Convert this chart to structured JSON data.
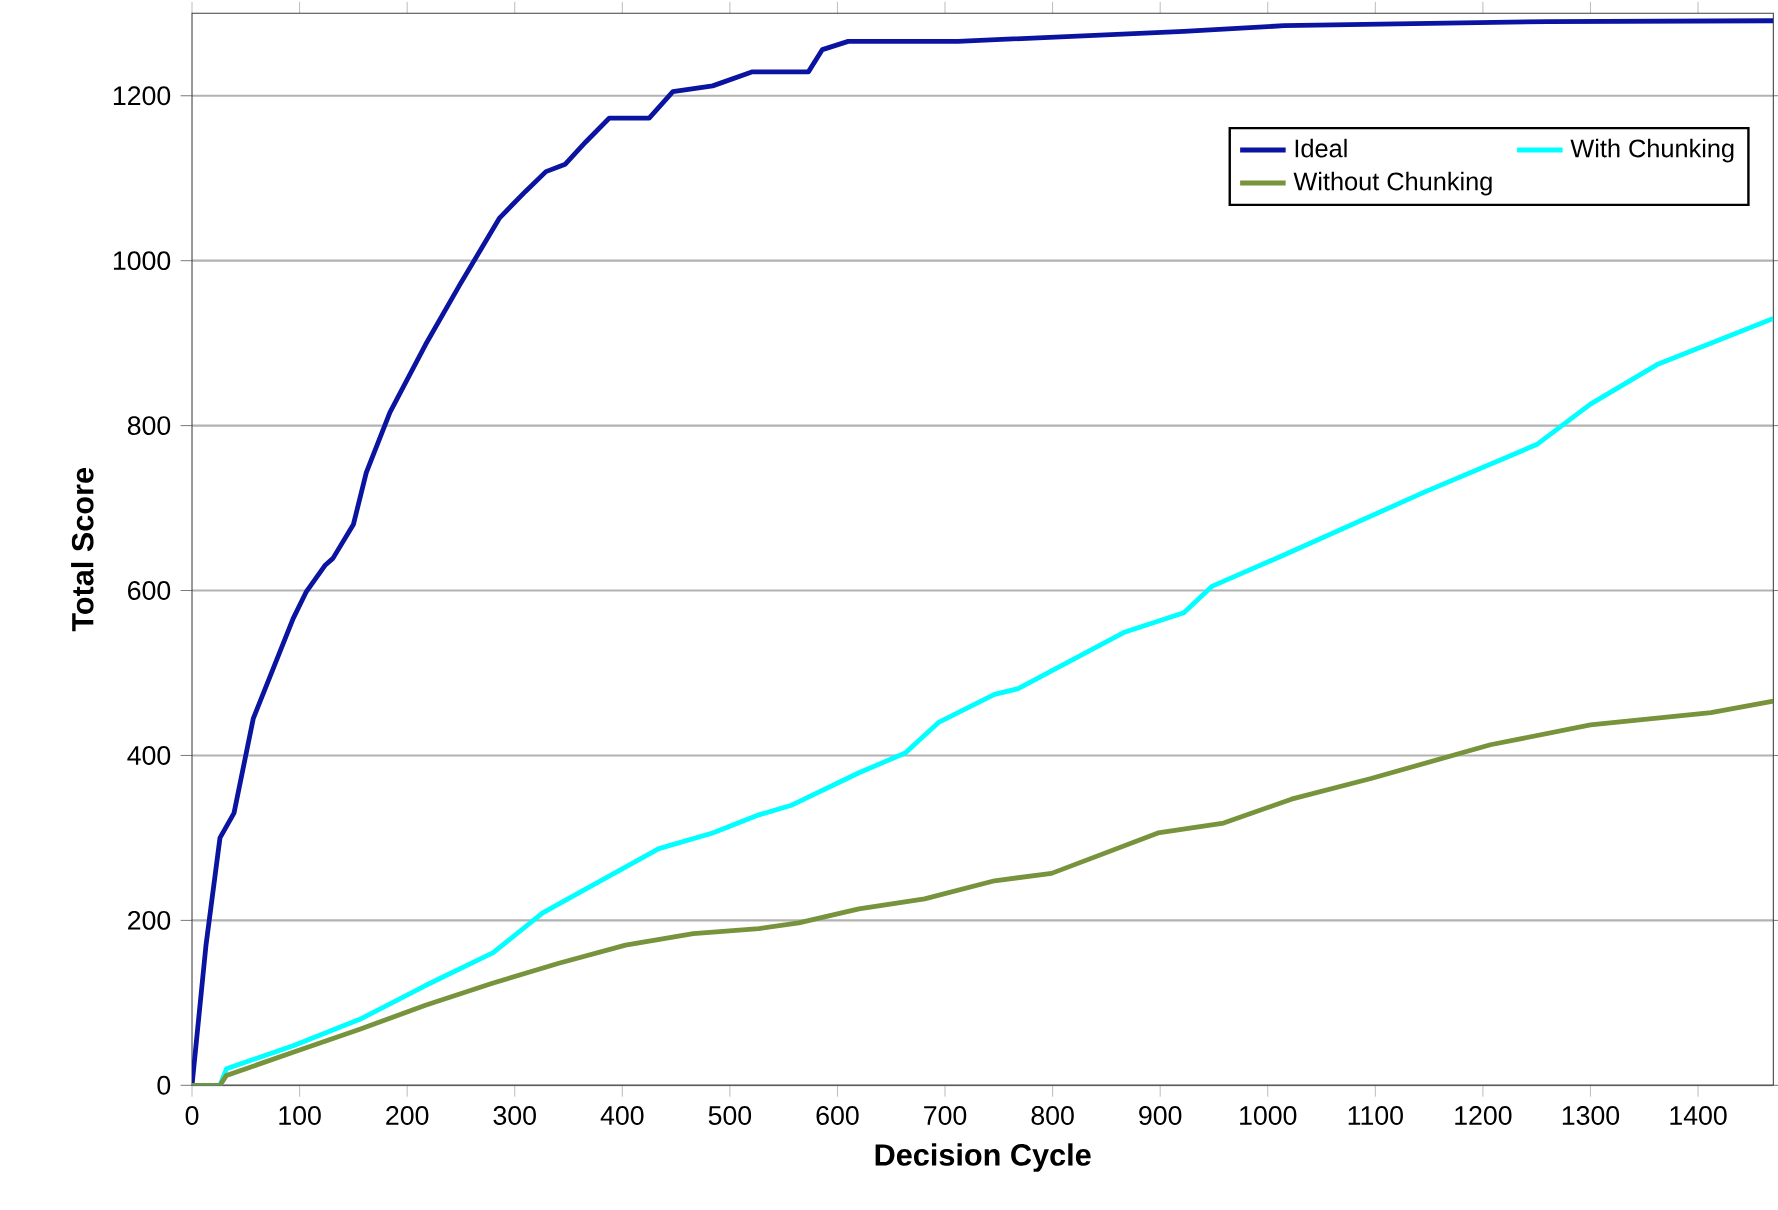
{
  "chart_data": {
    "type": "line",
    "xlabel": "Decision Cycle",
    "ylabel": "Total Score",
    "xlim": [
      0,
      1470
    ],
    "ylim": [
      0,
      1300
    ],
    "xticks": [
      0,
      100,
      200,
      300,
      400,
      500,
      600,
      700,
      800,
      900,
      1000,
      1100,
      1200,
      1300,
      1400
    ],
    "yticks": [
      0,
      200,
      400,
      600,
      800,
      1000,
      1200
    ],
    "grid": "y",
    "legend": "top right",
    "series": [
      {
        "name": "Ideal",
        "color": "#0a14a0",
        "x": [
          0,
          13,
          26,
          39,
          57,
          94,
          106,
          124,
          131,
          150,
          162,
          184,
          217,
          249,
          286,
          310,
          329,
          347,
          366,
          388,
          425,
          447,
          484,
          521,
          573,
          586,
          610,
          712,
          922,
          1015,
          1260,
          1470
        ],
        "values": [
          0,
          170,
          300,
          330,
          445,
          566,
          598,
          631,
          639,
          680,
          743,
          816,
          898,
          971,
          1052,
          1084,
          1108,
          1117,
          1144,
          1173,
          1173,
          1205,
          1212,
          1229,
          1229,
          1256,
          1266,
          1266,
          1278,
          1285,
          1290,
          1291
        ]
      },
      {
        "name": "With Chunking",
        "color": "#00ffff",
        "x": [
          0,
          26,
          32,
          94,
          156,
          217,
          280,
          326,
          373,
          434,
          484,
          527,
          558,
          620,
          663,
          694,
          746,
          768,
          866,
          922,
          948,
          1015,
          1145,
          1250,
          1300,
          1362,
          1470
        ],
        "values": [
          0,
          0,
          20,
          48,
          80,
          121,
          161,
          209,
          243,
          287,
          306,
          328,
          340,
          379,
          403,
          440,
          474,
          481,
          549,
          573,
          605,
          643,
          719,
          777,
          826,
          874,
          930
        ]
      },
      {
        "name": "Without Chunking",
        "color": "#77933c",
        "x": [
          0,
          26,
          32,
          94,
          156,
          217,
          280,
          341,
          403,
          466,
          527,
          564,
          620,
          681,
          746,
          799,
          898,
          959,
          1022,
          1096,
          1207,
          1300,
          1412,
          1470
        ],
        "values": [
          0,
          0,
          12,
          40,
          68,
          97,
          124,
          148,
          170,
          184,
          190,
          197,
          214,
          226,
          248,
          257,
          306,
          318,
          347,
          372,
          413,
          437,
          452,
          466
        ]
      }
    ]
  }
}
